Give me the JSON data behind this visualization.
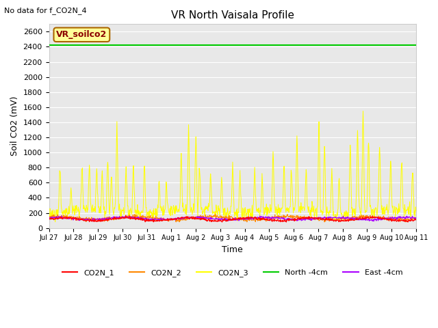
{
  "title": "VR North Vaisala Profile",
  "watermark": "No data for f_CO2N_4",
  "ylabel": "Soil CO2 (mV)",
  "xlabel": "Time",
  "ylim": [
    0,
    2700
  ],
  "yticks": [
    0,
    200,
    400,
    600,
    800,
    1000,
    1200,
    1400,
    1600,
    1800,
    2000,
    2200,
    2400,
    2600
  ],
  "xtick_labels": [
    "Jul 27",
    "Jul 28",
    "Jul 29",
    "Jul 30",
    "Jul 31",
    "Aug 1",
    "Aug 2",
    "Aug 3",
    "Aug 4",
    "Aug 5",
    "Aug 6",
    "Aug 7",
    "Aug 8",
    "Aug 9",
    "Aug 10",
    "Aug 11"
  ],
  "legend_labels": [
    "CO2N_1",
    "CO2N_2",
    "CO2N_3",
    "North -4cm",
    "East -4cm"
  ],
  "legend_colors": [
    "#ff0000",
    "#ff8800",
    "#ffff00",
    "#00cc00",
    "#aa00ff"
  ],
  "north_line_value": 2420,
  "north_line_color": "#00cc00",
  "annotation_text": "VR_soilco2",
  "annotation_bg": "#ffff99",
  "annotation_border": "#aa6600",
  "plot_bg": "#e8e8e8",
  "fig_bg": "#ffffff",
  "n_points": 1000,
  "seed": 42
}
